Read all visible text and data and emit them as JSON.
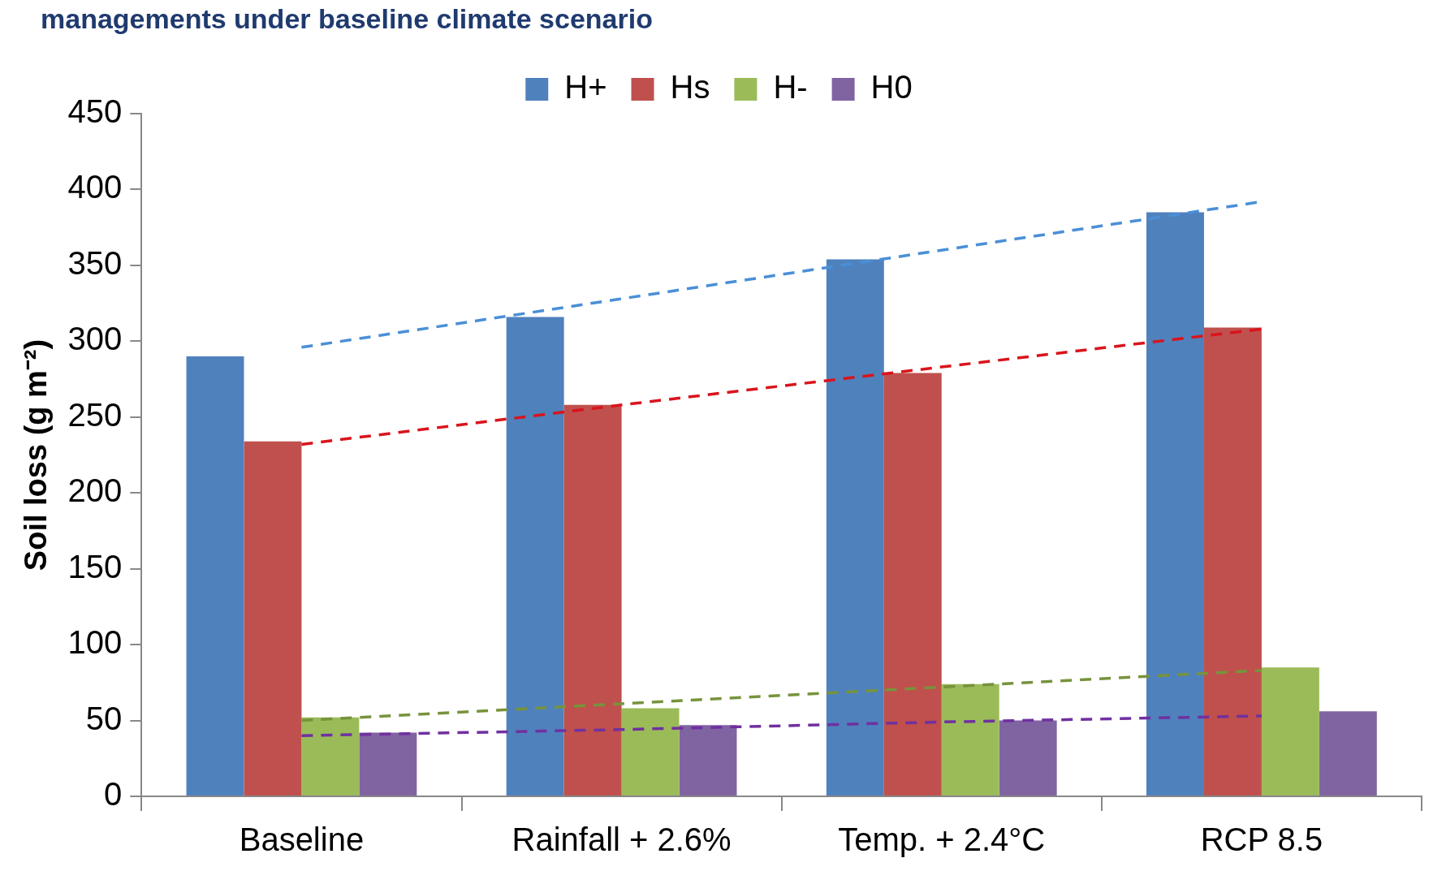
{
  "chart_data": {
    "type": "bar",
    "title": "managements under baseline climate scenario",
    "ylabel": "Soil loss (g m⁻²)",
    "categories": [
      "Baseline",
      "Rainfall + 2.6%",
      "Temp. + 2.4°C",
      "RCP 8.5"
    ],
    "series": [
      {
        "name": "H+",
        "color": "#4f81bd",
        "values": [
          290,
          316,
          354,
          385
        ]
      },
      {
        "name": "Hs",
        "color": "#c0504d",
        "values": [
          234,
          258,
          279,
          309
        ]
      },
      {
        "name": "H-",
        "color": "#9bbb59",
        "values": [
          52,
          58,
          74,
          85
        ]
      },
      {
        "name": "H0",
        "color": "#8064a2",
        "values": [
          42,
          47,
          50,
          56
        ]
      },
      {
        "type": "line",
        "color": "#4a8fd6",
        "line_style": "dashed",
        "marker": "none",
        "values": [
          296,
          328,
          360,
          392
        ]
      },
      {
        "type": "line",
        "color": "#d9141c",
        "line_style": "dashed",
        "marker": "none",
        "values": [
          232,
          258,
          283,
          308
        ]
      },
      {
        "type": "line",
        "color": "#77933c",
        "line_style": "dashed",
        "marker": "none",
        "values": [
          50,
          61,
          72,
          83
        ]
      },
      {
        "type": "line",
        "color": "#7030a0",
        "line_style": "dashed",
        "marker": "none",
        "values": [
          40,
          44,
          49,
          53
        ]
      }
    ],
    "ylim": [
      0,
      450
    ],
    "yticks": [
      0,
      50,
      100,
      150,
      200,
      250,
      300,
      350,
      400,
      450
    ],
    "grid": false,
    "legend": "top"
  }
}
